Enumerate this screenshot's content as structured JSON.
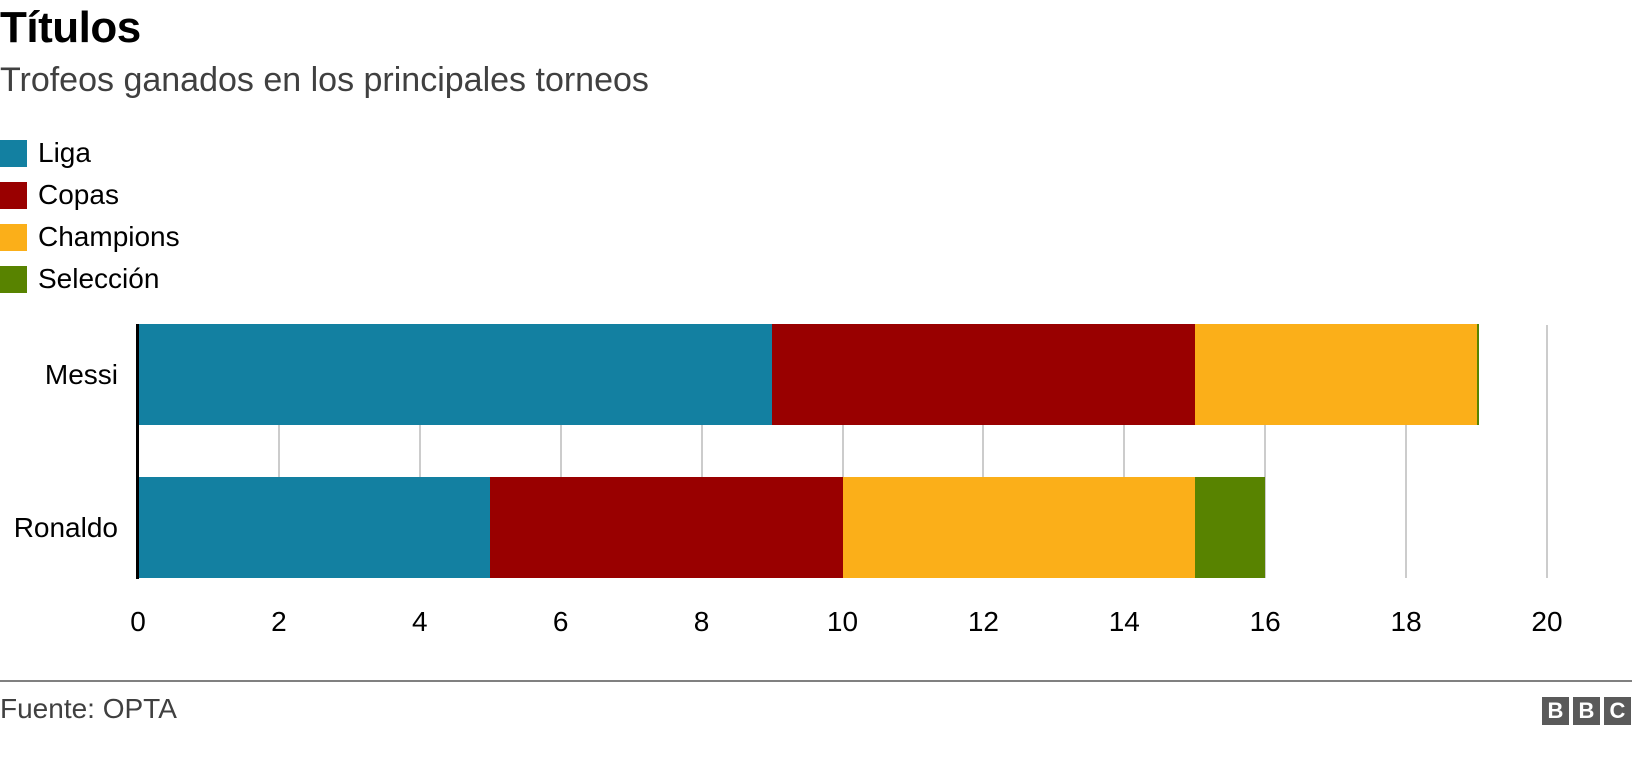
{
  "header": {
    "title": "Títulos",
    "subtitle": "Trofeos ganados en los principales torneos"
  },
  "legend": [
    {
      "label": "Liga",
      "color": "#1380a1"
    },
    {
      "label": "Copas",
      "color": "#990000"
    },
    {
      "label": "Champions",
      "color": "#fbaf19"
    },
    {
      "label": "Selección",
      "color": "#588300"
    }
  ],
  "footer": {
    "source": "Fuente: OPTA",
    "logo": [
      "B",
      "B",
      "C"
    ]
  },
  "chart_data": {
    "type": "bar",
    "orientation": "horizontal",
    "stacked": true,
    "title": "Títulos",
    "subtitle": "Trofeos ganados en los principales torneos",
    "categories": [
      "Messi",
      "Ronaldo"
    ],
    "series": [
      {
        "name": "Liga",
        "color": "#1380a1",
        "values": [
          9,
          5
        ]
      },
      {
        "name": "Copas",
        "color": "#990000",
        "values": [
          6,
          5
        ]
      },
      {
        "name": "Champions",
        "color": "#fbaf19",
        "values": [
          4,
          5
        ]
      },
      {
        "name": "Selección",
        "color": "#588300",
        "values": [
          0,
          1
        ]
      }
    ],
    "totals": [
      19,
      16
    ],
    "xlabel": "",
    "ylabel": "",
    "xlim": [
      0,
      20
    ],
    "xticks": [
      "0",
      "2",
      "4",
      "6",
      "8",
      "10",
      "12",
      "14",
      "16",
      "18",
      "20"
    ],
    "grid": "vertical",
    "legend_position": "top-left",
    "source": "Fuente: OPTA"
  }
}
